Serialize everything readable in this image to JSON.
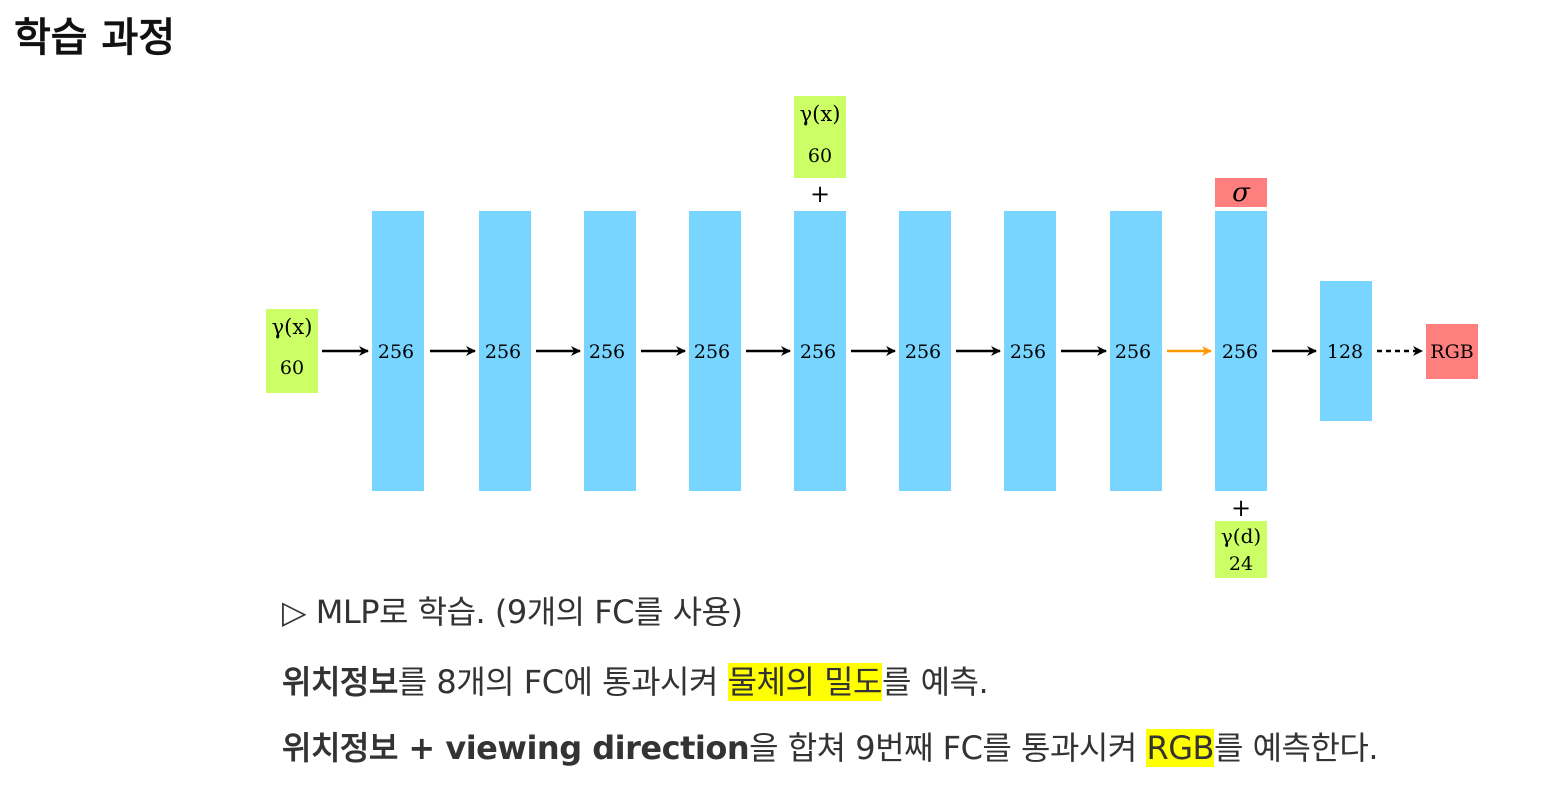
{
  "title": "학습 과정",
  "diagram": {
    "input_x": {
      "symbol": "γ(x)",
      "dim": "60"
    },
    "skip_input_x": {
      "symbol": "γ(x)",
      "dim": "60",
      "plus": "+"
    },
    "layers": [
      "256",
      "256",
      "256",
      "256",
      "256",
      "256",
      "256",
      "256",
      "256",
      "128"
    ],
    "sigma_output": "σ",
    "view_input_d": {
      "symbol": "γ(d)",
      "dim": "24",
      "plus": "+"
    },
    "rgb_output": "RGB",
    "colors": {
      "layer": "#77d5ff",
      "input": "#ccff66",
      "output": "#ff7f7f",
      "orange_arrow": "#ff9900",
      "highlight": "#ffff00"
    }
  },
  "description": {
    "line1": "▷ MLP로 학습. (9개의 FC를 사용)",
    "line2": {
      "bold": "위치정보",
      "text1": "를 8개의 FC에 통과시켜 ",
      "highlight": "물체의 밀도",
      "text2": "를 예측."
    },
    "line3": {
      "bold": "위치정보 + viewing direction",
      "text1": "을 합쳐 9번째 FC를 통과시켜 ",
      "highlight": "RGB",
      "text2": "를 예측한다."
    }
  }
}
